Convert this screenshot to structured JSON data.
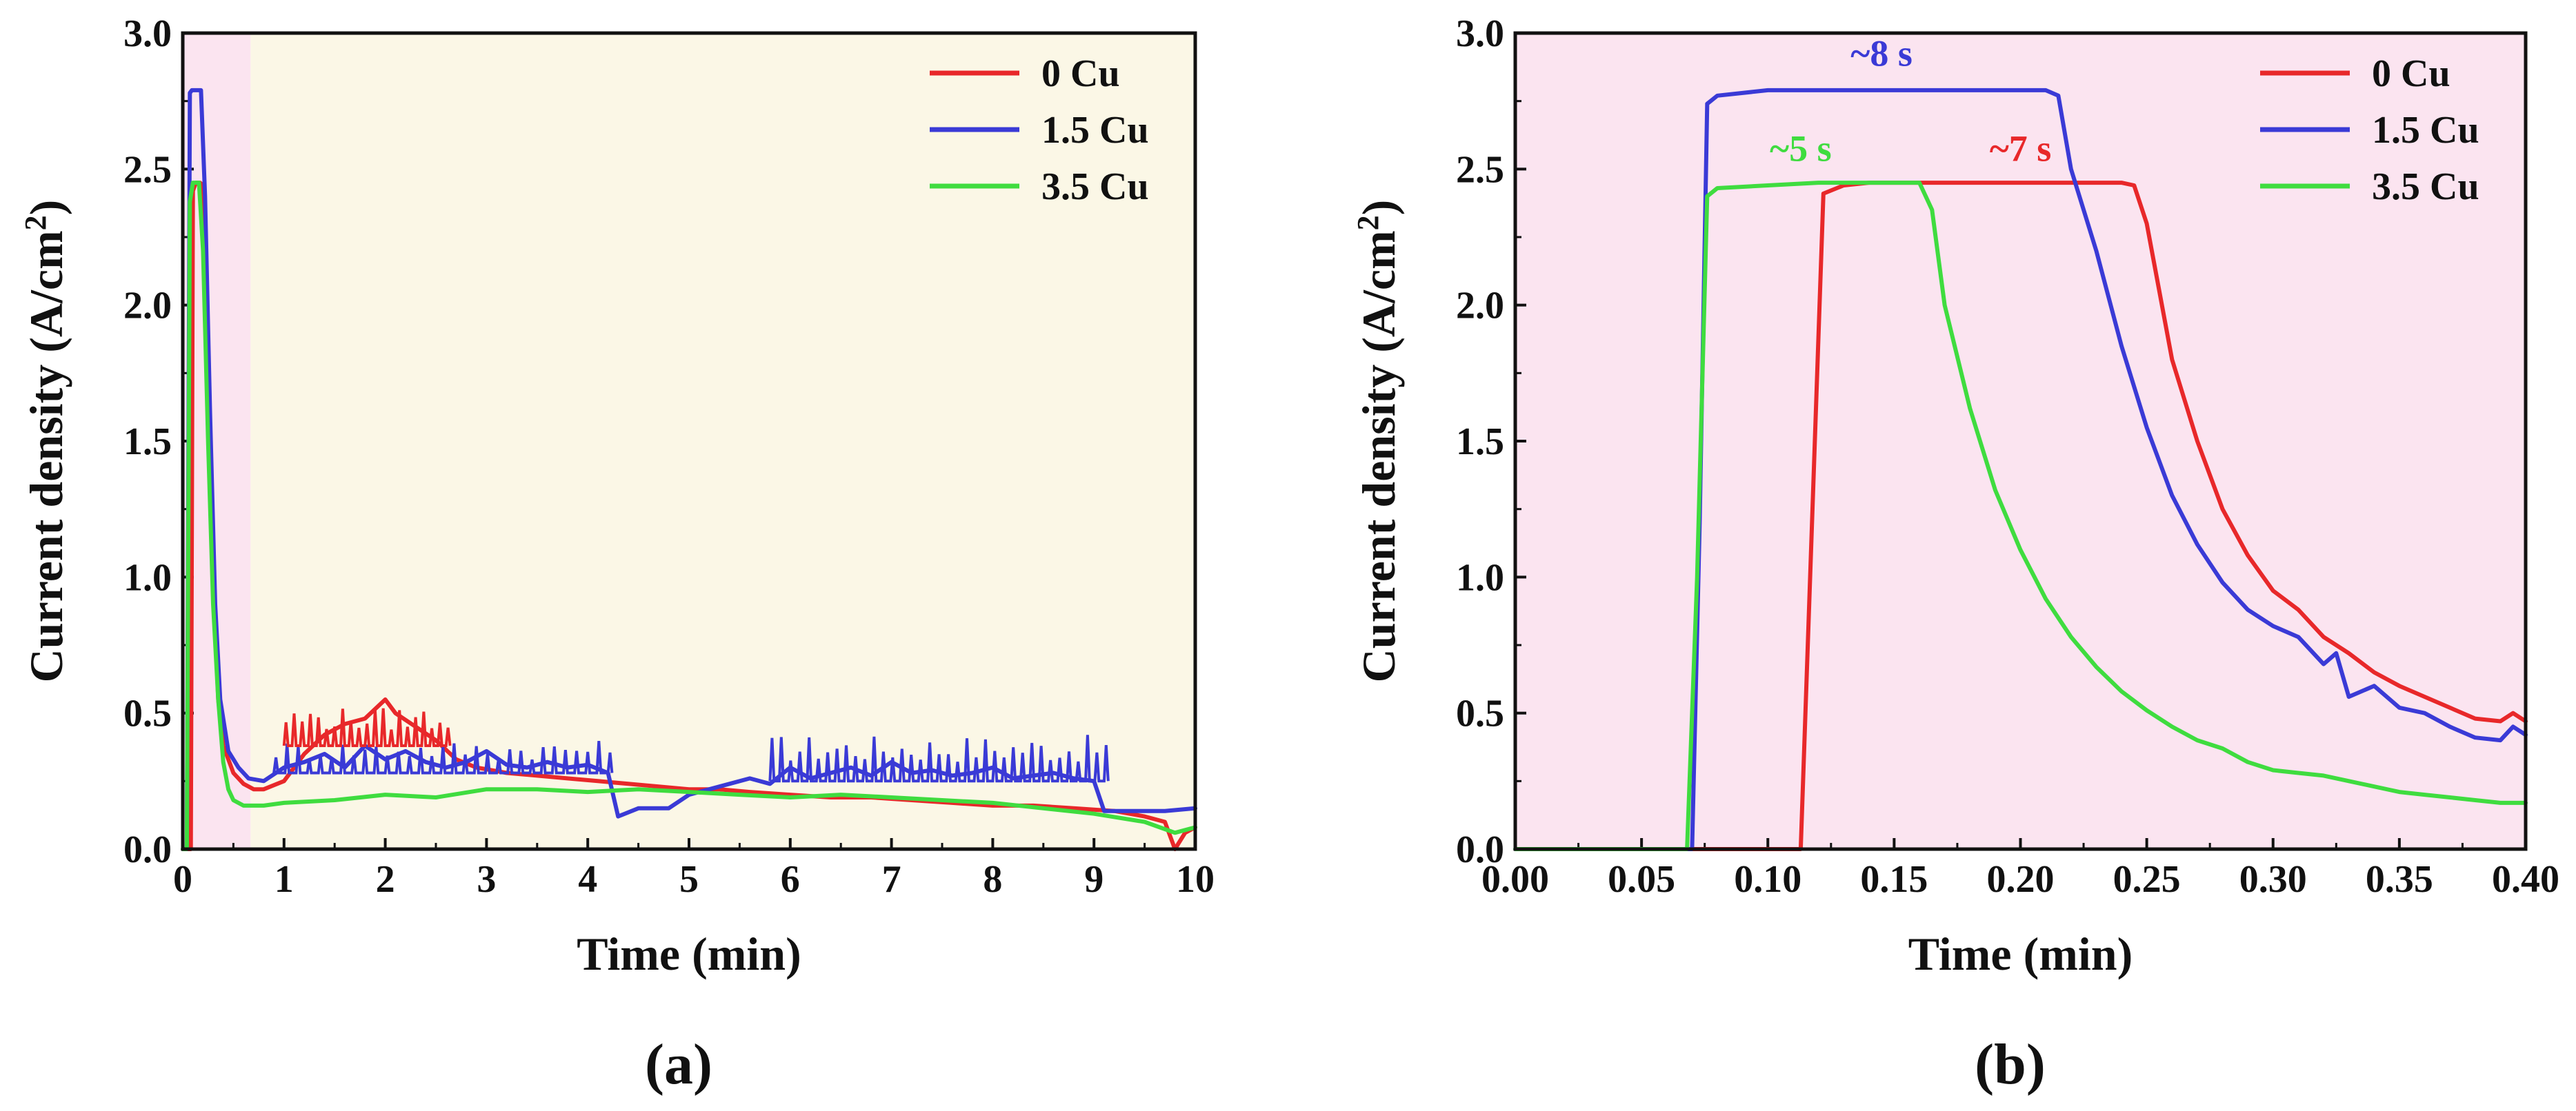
{
  "chart_data": [
    {
      "type": "line",
      "panel_label": "(a)",
      "xlabel": "Time (min)",
      "ylabel_main": "Current density (A/cm",
      "ylabel_sup": "2",
      "ylabel_close": ")",
      "xlim": [
        0,
        10
      ],
      "ylim": [
        0,
        3.0
      ],
      "xticks": [
        "0",
        "1",
        "2",
        "3",
        "4",
        "5",
        "6",
        "7",
        "8",
        "9",
        "10"
      ],
      "yticks": [
        "0.0",
        "0.5",
        "1.0",
        "1.5",
        "2.0",
        "2.5",
        "3.0"
      ],
      "regions": [
        {
          "x0": 0,
          "x1": 0.67,
          "color": "#fbe4f0"
        },
        {
          "x0": 0.67,
          "x1": 10,
          "color": "#fbf7e6"
        }
      ],
      "legend_position": "top-right",
      "series": [
        {
          "name": "0 Cu",
          "color": "#e8282a",
          "x": [
            0,
            0.05,
            0.08,
            0.1,
            0.13,
            0.17,
            0.2,
            0.25,
            0.3,
            0.35,
            0.4,
            0.5,
            0.6,
            0.7,
            0.8,
            1.0,
            1.2,
            1.4,
            1.6,
            1.8,
            2.0,
            2.1,
            2.3,
            2.5,
            2.7,
            2.9,
            3.2,
            3.5,
            3.8,
            4.1,
            4.4,
            4.7,
            5.0,
            5.3,
            5.6,
            6.0,
            6.4,
            6.8,
            7.2,
            7.6,
            8.0,
            8.4,
            8.8,
            9.2,
            9.5,
            9.7,
            9.8,
            9.9,
            10.0
          ],
          "y": [
            0,
            0,
            0,
            2.42,
            2.45,
            2.45,
            2.44,
            1.8,
            1.0,
            0.55,
            0.38,
            0.28,
            0.24,
            0.22,
            0.22,
            0.25,
            0.35,
            0.42,
            0.46,
            0.48,
            0.55,
            0.5,
            0.45,
            0.4,
            0.33,
            0.3,
            0.28,
            0.27,
            0.26,
            0.25,
            0.24,
            0.23,
            0.22,
            0.22,
            0.21,
            0.2,
            0.19,
            0.19,
            0.18,
            0.17,
            0.16,
            0.16,
            0.15,
            0.14,
            0.12,
            0.1,
            0.0,
            0.06,
            0.08
          ]
        },
        {
          "name": "1.5 Cu",
          "color": "#3a3ad6",
          "x": [
            0,
            0.04,
            0.07,
            0.09,
            0.12,
            0.15,
            0.18,
            0.22,
            0.27,
            0.32,
            0.37,
            0.45,
            0.55,
            0.65,
            0.8,
            1.0,
            1.2,
            1.4,
            1.6,
            1.8,
            2.0,
            2.2,
            2.4,
            2.6,
            2.8,
            3.0,
            3.2,
            3.4,
            3.6,
            3.8,
            4.0,
            4.2,
            4.3,
            4.5,
            4.8,
            5.0,
            5.2,
            5.4,
            5.6,
            5.8,
            6.0,
            6.2,
            6.4,
            6.6,
            6.8,
            7.0,
            7.2,
            7.4,
            7.6,
            7.8,
            8.0,
            8.2,
            8.4,
            8.6,
            8.8,
            9.0,
            9.1,
            9.4,
            9.7,
            10.0
          ],
          "y": [
            0,
            0,
            2.78,
            2.79,
            2.79,
            2.79,
            2.79,
            2.4,
            1.6,
            0.9,
            0.55,
            0.36,
            0.3,
            0.26,
            0.25,
            0.3,
            0.32,
            0.35,
            0.3,
            0.38,
            0.33,
            0.36,
            0.32,
            0.3,
            0.32,
            0.36,
            0.31,
            0.3,
            0.32,
            0.3,
            0.31,
            0.28,
            0.12,
            0.15,
            0.15,
            0.2,
            0.22,
            0.24,
            0.26,
            0.24,
            0.3,
            0.26,
            0.28,
            0.3,
            0.27,
            0.32,
            0.28,
            0.29,
            0.27,
            0.28,
            0.3,
            0.26,
            0.27,
            0.28,
            0.26,
            0.25,
            0.14,
            0.14,
            0.14,
            0.15
          ]
        },
        {
          "name": "3.5 Cu",
          "color": "#3fdc3f",
          "x": [
            0,
            0.04,
            0.07,
            0.1,
            0.13,
            0.16,
            0.2,
            0.25,
            0.3,
            0.35,
            0.4,
            0.45,
            0.5,
            0.6,
            0.8,
            1.0,
            1.5,
            2.0,
            2.5,
            3.0,
            3.5,
            4.0,
            4.5,
            5.0,
            5.5,
            6.0,
            6.5,
            7.0,
            7.5,
            8.0,
            8.5,
            9.0,
            9.5,
            9.8,
            10.0
          ],
          "y": [
            0,
            0,
            2.38,
            2.45,
            2.45,
            2.45,
            2.2,
            1.5,
            0.9,
            0.55,
            0.32,
            0.22,
            0.18,
            0.16,
            0.16,
            0.17,
            0.18,
            0.2,
            0.19,
            0.22,
            0.22,
            0.21,
            0.22,
            0.21,
            0.2,
            0.19,
            0.2,
            0.19,
            0.18,
            0.17,
            0.15,
            0.13,
            0.1,
            0.06,
            0.08
          ]
        }
      ],
      "spikes": [
        {
          "series": 1,
          "x_start": 5.8,
          "x_end": 9.1,
          "base": 0.25,
          "peak": 0.42,
          "count": 36
        },
        {
          "series": 1,
          "x_start": 0.9,
          "x_end": 4.2,
          "base": 0.28,
          "peak": 0.4,
          "count": 30
        },
        {
          "series": 0,
          "x_start": 1.0,
          "x_end": 2.6,
          "base": 0.38,
          "peak": 0.52,
          "count": 20
        }
      ]
    },
    {
      "type": "line",
      "panel_label": "(b)",
      "xlabel": "Time (min)",
      "ylabel_main": "Current density (A/cm",
      "ylabel_sup": "2",
      "ylabel_close": ")",
      "xlim": [
        0,
        0.4
      ],
      "ylim": [
        0,
        3.0
      ],
      "xticks": [
        "0.00",
        "0.05",
        "0.10",
        "0.15",
        "0.20",
        "0.25",
        "0.30",
        "0.35",
        "0.40"
      ],
      "yticks": [
        "0.0",
        "0.5",
        "1.0",
        "1.5",
        "2.0",
        "2.5",
        "3.0"
      ],
      "regions": [
        {
          "x0": 0,
          "x1": 0.4,
          "color": "#fbe4f0"
        }
      ],
      "legend_position": "top-right",
      "annotations": [
        {
          "text": "~8 s",
          "x": 0.145,
          "y": 2.88,
          "color": "#3a3ad6"
        },
        {
          "text": "~5 s",
          "x": 0.113,
          "y": 2.53,
          "color": "#3fdc3f"
        },
        {
          "text": "~7 s",
          "x": 0.2,
          "y": 2.53,
          "color": "#e8282a"
        }
      ],
      "series": [
        {
          "name": "0 Cu",
          "color": "#e8282a",
          "x": [
            0,
            0.112,
            0.113,
            0.122,
            0.13,
            0.14,
            0.16,
            0.18,
            0.2,
            0.22,
            0.24,
            0.245,
            0.25,
            0.26,
            0.27,
            0.28,
            0.29,
            0.3,
            0.31,
            0.32,
            0.33,
            0.34,
            0.35,
            0.36,
            0.37,
            0.38,
            0.39,
            0.395,
            0.4
          ],
          "y": [
            0,
            0,
            0,
            2.41,
            2.44,
            2.45,
            2.45,
            2.45,
            2.45,
            2.45,
            2.45,
            2.44,
            2.3,
            1.8,
            1.5,
            1.25,
            1.08,
            0.95,
            0.88,
            0.78,
            0.72,
            0.65,
            0.6,
            0.56,
            0.52,
            0.48,
            0.47,
            0.5,
            0.47
          ]
        },
        {
          "name": "1.5 Cu",
          "color": "#3a3ad6",
          "x": [
            0,
            0.07,
            0.073,
            0.076,
            0.08,
            0.1,
            0.13,
            0.16,
            0.19,
            0.21,
            0.215,
            0.22,
            0.23,
            0.24,
            0.25,
            0.26,
            0.27,
            0.28,
            0.29,
            0.3,
            0.31,
            0.32,
            0.325,
            0.33,
            0.34,
            0.35,
            0.36,
            0.37,
            0.38,
            0.39,
            0.395,
            0.4
          ],
          "y": [
            0,
            0,
            1.2,
            2.74,
            2.77,
            2.79,
            2.79,
            2.79,
            2.79,
            2.79,
            2.77,
            2.5,
            2.2,
            1.85,
            1.55,
            1.3,
            1.12,
            0.98,
            0.88,
            0.82,
            0.78,
            0.68,
            0.72,
            0.56,
            0.6,
            0.52,
            0.5,
            0.45,
            0.41,
            0.4,
            0.45,
            0.42
          ]
        },
        {
          "name": "3.5 Cu",
          "color": "#3fdc3f",
          "x": [
            0,
            0.068,
            0.072,
            0.076,
            0.08,
            0.1,
            0.12,
            0.14,
            0.16,
            0.165,
            0.17,
            0.18,
            0.19,
            0.2,
            0.21,
            0.22,
            0.23,
            0.24,
            0.25,
            0.26,
            0.27,
            0.28,
            0.29,
            0.3,
            0.31,
            0.32,
            0.33,
            0.34,
            0.35,
            0.36,
            0.37,
            0.38,
            0.39,
            0.4
          ],
          "y": [
            0,
            0,
            1.0,
            2.4,
            2.43,
            2.44,
            2.45,
            2.45,
            2.45,
            2.35,
            2.0,
            1.62,
            1.32,
            1.1,
            0.92,
            0.78,
            0.67,
            0.58,
            0.51,
            0.45,
            0.4,
            0.37,
            0.32,
            0.29,
            0.28,
            0.27,
            0.25,
            0.23,
            0.21,
            0.2,
            0.19,
            0.18,
            0.17,
            0.17
          ]
        }
      ]
    }
  ]
}
